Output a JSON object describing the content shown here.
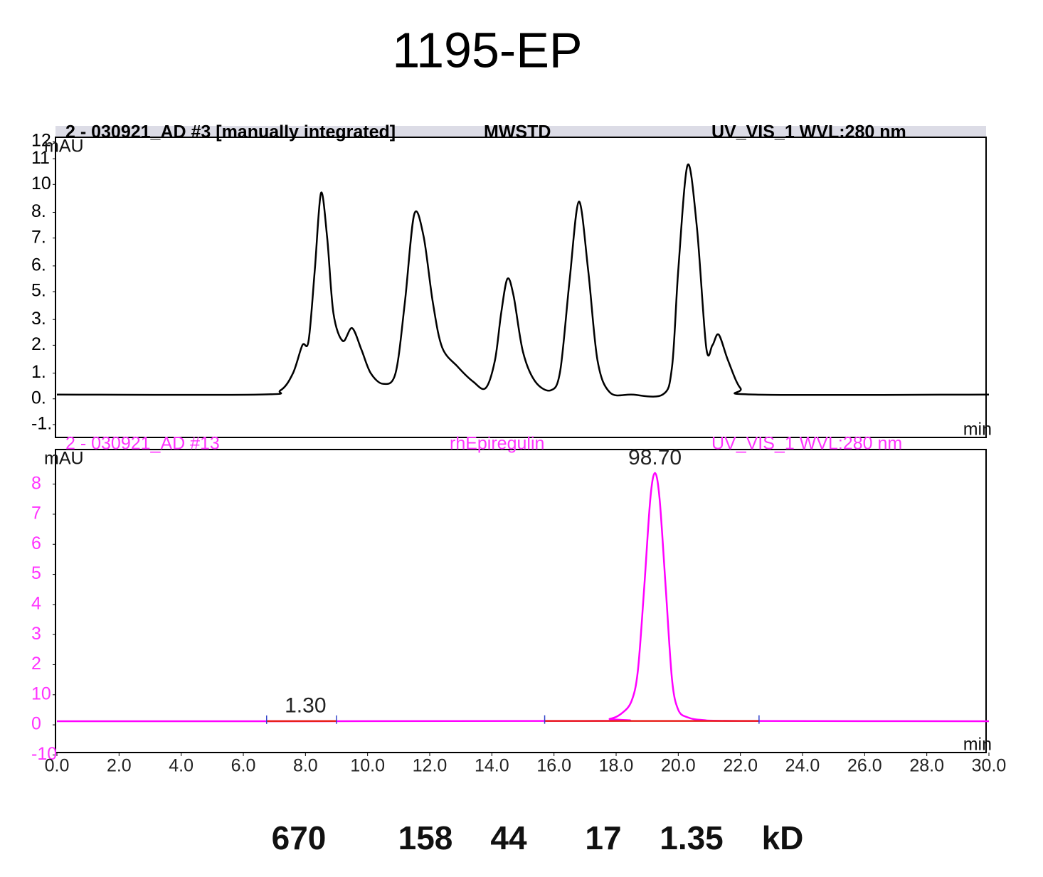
{
  "title": "1195-EP",
  "chart_data": [
    {
      "type": "line",
      "header": [
        "2 - 030921_AD #3 [manually integrated]",
        "MWSTD",
        "UV_VIS_1 WVL:280 nm"
      ],
      "ylabel": "mAU",
      "xlabel": "min",
      "xlim": [
        0,
        30
      ],
      "ylim": [
        -1.8,
        12.2
      ],
      "yticks": [
        {
          "value": -1.2,
          "label": "-1."
        },
        {
          "value": 0.0,
          "label": "0."
        },
        {
          "value": 1.2,
          "label": "1."
        },
        {
          "value": 2.5,
          "label": "2."
        },
        {
          "value": 3.7,
          "label": "3."
        },
        {
          "value": 5.0,
          "label": "5."
        },
        {
          "value": 6.2,
          "label": "6."
        },
        {
          "value": 7.5,
          "label": "7."
        },
        {
          "value": 8.7,
          "label": "8."
        },
        {
          "value": 10.0,
          "label": "10"
        },
        {
          "value": 11.2,
          "label": "11"
        },
        {
          "value": 12.0,
          "label": "12"
        }
      ],
      "x": [
        0,
        6.5,
        7.2,
        7.6,
        7.9,
        8.1,
        8.3,
        8.5,
        8.7,
        8.9,
        9.2,
        9.5,
        9.8,
        10.1,
        10.5,
        10.9,
        11.2,
        11.5,
        11.8,
        12.1,
        12.4,
        12.9,
        13.4,
        13.8,
        14.1,
        14.3,
        14.5,
        14.7,
        15.0,
        15.4,
        15.9,
        16.2,
        16.5,
        16.8,
        17.1,
        17.4,
        17.8,
        18.5,
        19.5,
        19.8,
        20.0,
        20.3,
        20.6,
        20.9,
        21.1,
        21.3,
        21.6,
        22.0,
        22.5,
        30
      ],
      "series": [
        {
          "color": "#000000",
          "values": [
            0.2,
            0.2,
            0.4,
            1.2,
            2.5,
            2.7,
            6.0,
            9.6,
            7.5,
            4.0,
            2.7,
            3.3,
            2.3,
            1.2,
            0.7,
            1.2,
            4.5,
            8.6,
            7.6,
            4.5,
            2.4,
            1.5,
            0.8,
            0.5,
            1.8,
            4.0,
            5.6,
            4.8,
            2.2,
            0.8,
            0.4,
            1.3,
            5.5,
            9.2,
            6.0,
            1.8,
            0.3,
            0.2,
            0.2,
            1.5,
            6.0,
            10.9,
            8.0,
            2.4,
            2.5,
            3.0,
            1.8,
            0.5,
            0.2,
            0.2
          ]
        }
      ],
      "header_color": "#000000",
      "label_color": "#000000"
    },
    {
      "type": "line",
      "header": [
        "2 - 030921_AD #13",
        "rhEpiregulin",
        "UV_VIS_1 WVL:280 nm"
      ],
      "ylabel": "mAU",
      "xlabel": "min",
      "xlim": [
        0,
        30
      ],
      "ylim": [
        -9.2,
        91.5
      ],
      "yticks": [
        {
          "value": -10,
          "label": "-10"
        },
        0,
        10,
        {
          "value": 20,
          "label": "2"
        },
        {
          "value": 30,
          "label": "3"
        },
        {
          "value": 40,
          "label": "4"
        },
        {
          "value": 50,
          "label": "5"
        },
        {
          "value": 60,
          "label": "6"
        },
        {
          "value": 70,
          "label": "7"
        },
        {
          "value": 80,
          "label": "8"
        }
      ],
      "xticks": [
        {
          "value": 0,
          "label": "0.0"
        },
        {
          "value": 2,
          "label": "2.0"
        },
        {
          "value": 4,
          "label": "4.0"
        },
        {
          "value": 6,
          "label": "6.0"
        },
        {
          "value": 8,
          "label": "8.0"
        },
        {
          "value": 10,
          "label": "10.0"
        },
        {
          "value": 12,
          "label": "12.0"
        },
        {
          "value": 14,
          "label": "14.0"
        },
        {
          "value": 16,
          "label": "16.0"
        },
        {
          "value": 18,
          "label": "18.0"
        },
        {
          "value": 20,
          "label": "20.0"
        },
        {
          "value": 22,
          "label": "22.0"
        },
        {
          "value": 24,
          "label": "24.0"
        },
        {
          "value": 26,
          "label": "26.0"
        },
        {
          "value": 28,
          "label": "28.0"
        },
        {
          "value": 30,
          "label": "30.0"
        }
      ],
      "x": [
        0,
        17.0,
        17.8,
        18.2,
        18.5,
        18.7,
        18.9,
        19.1,
        19.25,
        19.4,
        19.6,
        19.8,
        20.0,
        20.3,
        20.8,
        22.0,
        30
      ],
      "series": [
        {
          "color": "#ff00ff",
          "values": [
            1.2,
            1.3,
            2.0,
            4.0,
            8.0,
            18,
            45,
            75,
            83.7,
            75,
            45,
            15,
            5,
            2.5,
            1.6,
            1.3,
            1.2
          ]
        }
      ],
      "baselines": [
        {
          "start": 6.75,
          "end": 9.0
        },
        {
          "start": 15.7,
          "end": 22.6
        }
      ],
      "baseline_color": "#e8201a",
      "annotations": [
        {
          "text": "1.30",
          "x": 8.0
        },
        {
          "text": "98.70",
          "x": 19.25
        }
      ],
      "header_color": "#ff33ff",
      "label_color": "#ff33ff"
    }
  ],
  "footer": {
    "markers": [
      "670",
      "158",
      "44",
      "17",
      "1.35"
    ],
    "unit": "kD"
  }
}
